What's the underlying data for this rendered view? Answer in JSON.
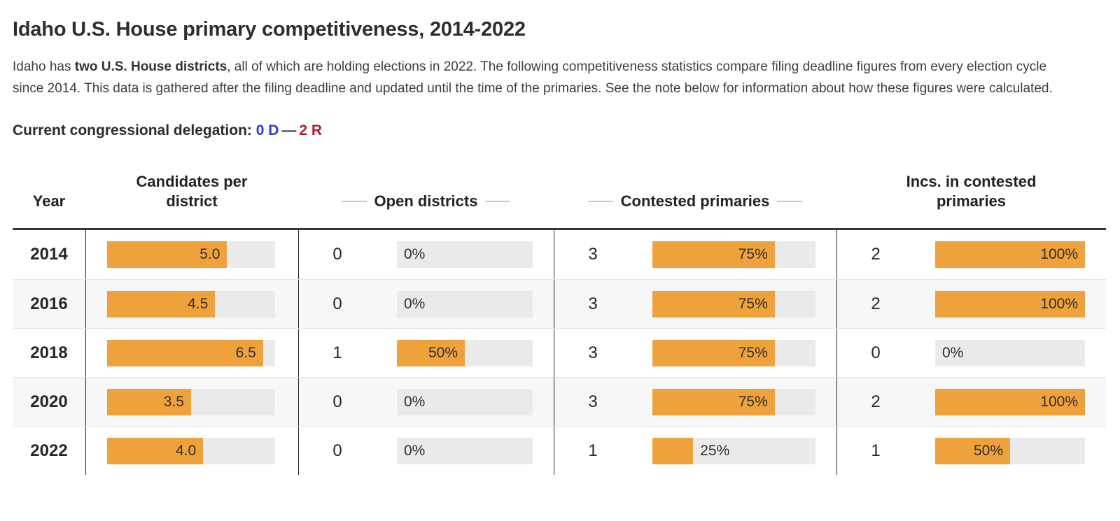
{
  "page": {
    "title": "Idaho U.S. House primary competitiveness, 2014-2022",
    "intro": {
      "pre": "Idaho has ",
      "bold": "two U.S. House districts",
      "post": ", all of which are holding elections in 2022. The following competitiveness statistics compare filing deadline figures from every election cycle since 2014. This data is gathered after the filing deadline and updated until the time of the primaries. See the note below for information about how these figures were calculated."
    },
    "delegation": {
      "label": "Current congressional delegation:",
      "dem": "0 D",
      "separator": "—",
      "rep": "2 R"
    }
  },
  "colors": {
    "bar_orange": "#EFA23C",
    "bar_track_gray": "#EAEAEA",
    "alt_row_gray": "#F7F7F7",
    "dem_blue": "#2E3EC8",
    "rep_red": "#AC2130"
  },
  "chart_data": {
    "type": "table",
    "title": "Idaho U.S. House primary competitiveness, 2014-2022",
    "candidates_bar_max": 7.0,
    "percent_bar_max": 100,
    "columns": [
      {
        "key": "year",
        "label": "Year",
        "dashes": false
      },
      {
        "key": "candidates-per-district",
        "label": "Candidates per district",
        "dashes": false
      },
      {
        "key": "open-districts",
        "label": "Open districts",
        "dashes": true
      },
      {
        "key": "contested-primaries",
        "label": "Contested primaries",
        "dashes": true
      },
      {
        "key": "incs-in-contested-primaries",
        "label": "Incs. in contested primaries",
        "dashes": false
      }
    ],
    "rows": [
      {
        "year": "2014",
        "candidates_per_district": {
          "value": 5.0,
          "label": "5.0"
        },
        "open_districts": {
          "count": 0,
          "pct": 0,
          "label": "0%"
        },
        "contested_primaries": {
          "count": 3,
          "pct": 75,
          "label": "75%"
        },
        "incs_in_contested_primaries": {
          "count": 2,
          "pct": 100,
          "label": "100%"
        }
      },
      {
        "year": "2016",
        "candidates_per_district": {
          "value": 4.5,
          "label": "4.5"
        },
        "open_districts": {
          "count": 0,
          "pct": 0,
          "label": "0%"
        },
        "contested_primaries": {
          "count": 3,
          "pct": 75,
          "label": "75%"
        },
        "incs_in_contested_primaries": {
          "count": 2,
          "pct": 100,
          "label": "100%"
        }
      },
      {
        "year": "2018",
        "candidates_per_district": {
          "value": 6.5,
          "label": "6.5"
        },
        "open_districts": {
          "count": 1,
          "pct": 50,
          "label": "50%"
        },
        "contested_primaries": {
          "count": 3,
          "pct": 75,
          "label": "75%"
        },
        "incs_in_contested_primaries": {
          "count": 0,
          "pct": 0,
          "label": "0%"
        }
      },
      {
        "year": "2020",
        "candidates_per_district": {
          "value": 3.5,
          "label": "3.5"
        },
        "open_districts": {
          "count": 0,
          "pct": 0,
          "label": "0%"
        },
        "contested_primaries": {
          "count": 3,
          "pct": 75,
          "label": "75%"
        },
        "incs_in_contested_primaries": {
          "count": 2,
          "pct": 100,
          "label": "100%"
        }
      },
      {
        "year": "2022",
        "candidates_per_district": {
          "value": 4.0,
          "label": "4.0"
        },
        "open_districts": {
          "count": 0,
          "pct": 0,
          "label": "0%"
        },
        "contested_primaries": {
          "count": 1,
          "pct": 25,
          "label": "25%"
        },
        "incs_in_contested_primaries": {
          "count": 1,
          "pct": 50,
          "label": "50%"
        }
      }
    ]
  }
}
